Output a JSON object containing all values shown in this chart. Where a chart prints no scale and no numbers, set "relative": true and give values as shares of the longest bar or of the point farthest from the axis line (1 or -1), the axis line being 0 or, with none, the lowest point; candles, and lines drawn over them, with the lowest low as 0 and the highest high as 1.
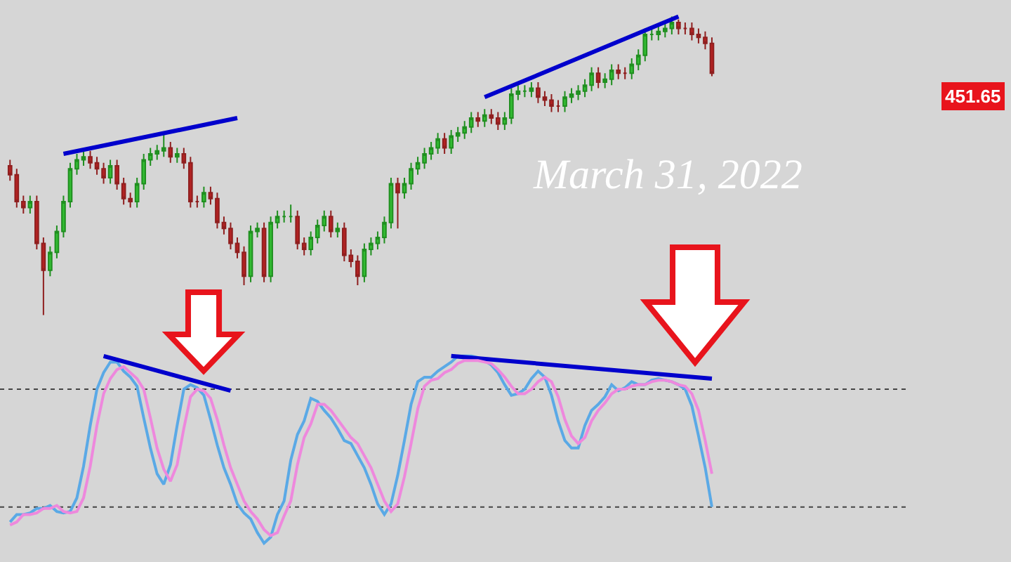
{
  "chart_data": [
    {
      "type": "candlestick",
      "relative": true,
      "categories": [
        null,
        null,
        null,
        null,
        null,
        null,
        null,
        null,
        null,
        null,
        null,
        null,
        null,
        null,
        null,
        null,
        null,
        null,
        null,
        null,
        null,
        null,
        null,
        null,
        null,
        null,
        null,
        null,
        null,
        null,
        null,
        null,
        null,
        null,
        null,
        null,
        null,
        null,
        null,
        null,
        null,
        null,
        null,
        null,
        null,
        null,
        null,
        null,
        null,
        null,
        null,
        null,
        null,
        null,
        null,
        null,
        null,
        null,
        null,
        null,
        null,
        null,
        null,
        null,
        null,
        null,
        null,
        null,
        null,
        null,
        null,
        null,
        null,
        null,
        null,
        null,
        null,
        null,
        null,
        null,
        null,
        null,
        null,
        null,
        null,
        null,
        null,
        null,
        null,
        null,
        null,
        null,
        null,
        null,
        null,
        null,
        null,
        null,
        null,
        null,
        null,
        null,
        null,
        null,
        null,
        null
      ],
      "ohlc": [
        [
          0.5,
          0.52,
          0.45,
          0.47
        ],
        [
          0.47,
          0.49,
          0.36,
          0.38
        ],
        [
          0.38,
          0.4,
          0.34,
          0.36
        ],
        [
          0.36,
          0.4,
          0.34,
          0.38
        ],
        [
          0.38,
          0.4,
          0.22,
          0.24
        ],
        [
          0.24,
          0.26,
          0.0,
          0.15
        ],
        [
          0.15,
          0.23,
          0.13,
          0.21
        ],
        [
          0.21,
          0.3,
          0.19,
          0.28
        ],
        [
          0.28,
          0.4,
          0.26,
          0.38
        ],
        [
          0.38,
          0.51,
          0.36,
          0.49
        ],
        [
          0.49,
          0.54,
          0.47,
          0.52
        ],
        [
          0.52,
          0.55,
          0.5,
          0.53
        ],
        [
          0.53,
          0.55,
          0.49,
          0.51
        ],
        [
          0.51,
          0.53,
          0.47,
          0.49
        ],
        [
          0.49,
          0.51,
          0.44,
          0.46
        ],
        [
          0.46,
          0.52,
          0.44,
          0.5
        ],
        [
          0.5,
          0.52,
          0.42,
          0.44
        ],
        [
          0.44,
          0.46,
          0.37,
          0.39
        ],
        [
          0.39,
          0.41,
          0.36,
          0.38
        ],
        [
          0.38,
          0.46,
          0.36,
          0.44
        ],
        [
          0.44,
          0.54,
          0.42,
          0.52
        ],
        [
          0.52,
          0.56,
          0.5,
          0.54
        ],
        [
          0.54,
          0.57,
          0.52,
          0.55
        ],
        [
          0.55,
          0.61,
          0.53,
          0.56
        ],
        [
          0.56,
          0.58,
          0.51,
          0.53
        ],
        [
          0.53,
          0.56,
          0.51,
          0.54
        ],
        [
          0.54,
          0.56,
          0.49,
          0.51
        ],
        [
          0.51,
          0.53,
          0.36,
          0.38
        ],
        [
          0.38,
          0.4,
          0.36,
          0.38
        ],
        [
          0.38,
          0.43,
          0.36,
          0.41
        ],
        [
          0.41,
          0.43,
          0.37,
          0.39
        ],
        [
          0.39,
          0.41,
          0.29,
          0.31
        ],
        [
          0.31,
          0.33,
          0.27,
          0.29
        ],
        [
          0.29,
          0.31,
          0.22,
          0.24
        ],
        [
          0.24,
          0.26,
          0.19,
          0.21
        ],
        [
          0.21,
          0.23,
          0.1,
          0.13
        ],
        [
          0.13,
          0.3,
          0.11,
          0.28
        ],
        [
          0.28,
          0.31,
          0.26,
          0.29
        ],
        [
          0.29,
          0.31,
          0.11,
          0.13
        ],
        [
          0.13,
          0.33,
          0.11,
          0.31
        ],
        [
          0.31,
          0.35,
          0.29,
          0.33
        ],
        [
          0.33,
          0.35,
          0.31,
          0.33
        ],
        [
          0.33,
          0.37,
          0.31,
          0.33
        ],
        [
          0.33,
          0.35,
          0.22,
          0.24
        ],
        [
          0.24,
          0.26,
          0.2,
          0.22
        ],
        [
          0.22,
          0.28,
          0.2,
          0.26
        ],
        [
          0.26,
          0.32,
          0.24,
          0.3
        ],
        [
          0.3,
          0.35,
          0.28,
          0.33
        ],
        [
          0.33,
          0.35,
          0.26,
          0.28
        ],
        [
          0.28,
          0.31,
          0.26,
          0.29
        ],
        [
          0.29,
          0.31,
          0.18,
          0.2
        ],
        [
          0.2,
          0.22,
          0.16,
          0.18
        ],
        [
          0.18,
          0.2,
          0.1,
          0.13
        ],
        [
          0.13,
          0.24,
          0.11,
          0.22
        ],
        [
          0.22,
          0.26,
          0.2,
          0.24
        ],
        [
          0.24,
          0.28,
          0.22,
          0.26
        ],
        [
          0.26,
          0.33,
          0.24,
          0.31
        ],
        [
          0.31,
          0.46,
          0.29,
          0.44
        ],
        [
          0.44,
          0.46,
          0.29,
          0.41
        ],
        [
          0.41,
          0.46,
          0.39,
          0.44
        ],
        [
          0.44,
          0.51,
          0.42,
          0.49
        ],
        [
          0.49,
          0.53,
          0.47,
          0.51
        ],
        [
          0.51,
          0.56,
          0.49,
          0.54
        ],
        [
          0.54,
          0.58,
          0.52,
          0.56
        ],
        [
          0.56,
          0.61,
          0.54,
          0.59
        ],
        [
          0.59,
          0.61,
          0.54,
          0.56
        ],
        [
          0.56,
          0.62,
          0.54,
          0.6
        ],
        [
          0.6,
          0.63,
          0.58,
          0.61
        ],
        [
          0.61,
          0.65,
          0.59,
          0.63
        ],
        [
          0.63,
          0.68,
          0.61,
          0.66
        ],
        [
          0.66,
          0.68,
          0.63,
          0.65
        ],
        [
          0.65,
          0.69,
          0.63,
          0.67
        ],
        [
          0.67,
          0.69,
          0.64,
          0.66
        ],
        [
          0.66,
          0.68,
          0.62,
          0.64
        ],
        [
          0.64,
          0.68,
          0.62,
          0.66
        ],
        [
          0.66,
          0.76,
          0.64,
          0.74
        ],
        [
          0.74,
          0.77,
          0.72,
          0.75
        ],
        [
          0.75,
          0.77,
          0.73,
          0.75
        ],
        [
          0.75,
          0.78,
          0.73,
          0.76
        ],
        [
          0.76,
          0.78,
          0.71,
          0.73
        ],
        [
          0.73,
          0.75,
          0.7,
          0.72
        ],
        [
          0.72,
          0.74,
          0.68,
          0.7
        ],
        [
          0.7,
          0.72,
          0.68,
          0.7
        ],
        [
          0.7,
          0.75,
          0.68,
          0.73
        ],
        [
          0.73,
          0.76,
          0.71,
          0.74
        ],
        [
          0.74,
          0.77,
          0.72,
          0.75
        ],
        [
          0.75,
          0.79,
          0.73,
          0.77
        ],
        [
          0.77,
          0.83,
          0.75,
          0.81
        ],
        [
          0.81,
          0.83,
          0.76,
          0.78
        ],
        [
          0.78,
          0.81,
          0.76,
          0.79
        ],
        [
          0.79,
          0.84,
          0.77,
          0.82
        ],
        [
          0.82,
          0.84,
          0.79,
          0.81
        ],
        [
          0.81,
          0.83,
          0.79,
          0.81
        ],
        [
          0.81,
          0.86,
          0.79,
          0.84
        ],
        [
          0.84,
          0.89,
          0.82,
          0.87
        ],
        [
          0.87,
          0.96,
          0.85,
          0.94
        ],
        [
          0.94,
          0.96,
          0.92,
          0.94
        ],
        [
          0.94,
          0.97,
          0.92,
          0.95
        ],
        [
          0.95,
          0.98,
          0.93,
          0.96
        ],
        [
          0.96,
          1.0,
          0.94,
          0.98
        ],
        [
          0.98,
          0.99,
          0.94,
          0.96
        ],
        [
          0.96,
          0.98,
          0.94,
          0.96
        ],
        [
          0.96,
          0.98,
          0.92,
          0.94
        ],
        [
          0.94,
          0.96,
          0.91,
          0.93
        ],
        [
          0.93,
          0.95,
          0.89,
          0.91
        ],
        [
          0.91,
          0.93,
          0.8,
          0.81
        ]
      ],
      "series": [
        {
          "type": "line",
          "color": "#0000cc",
          "values": [
            null,
            null,
            null,
            null,
            null,
            null,
            null,
            null,
            0.54,
            null,
            null,
            null,
            null,
            null,
            null,
            null,
            null,
            null,
            null,
            null,
            null,
            null,
            null,
            null,
            null,
            null,
            null,
            null,
            null,
            null,
            null,
            null,
            null,
            null,
            0.66,
            null,
            null,
            null,
            null,
            null,
            null,
            null,
            null,
            null,
            null,
            null,
            null,
            null,
            null,
            null,
            null,
            null,
            null,
            null,
            null,
            null,
            null,
            null,
            null,
            null,
            null,
            null,
            null,
            null,
            null,
            null,
            null,
            null,
            null,
            null,
            null,
            null,
            null,
            null,
            null,
            null,
            null,
            null,
            null,
            null,
            null,
            null,
            null,
            null,
            null,
            null,
            null,
            null,
            null,
            null,
            null,
            null,
            null,
            null,
            null,
            null,
            null,
            null,
            null,
            null,
            null,
            null,
            null,
            null,
            null,
            null
          ]
        },
        {
          "type": "line",
          "color": "#0000cc",
          "values": [
            null,
            null,
            null,
            null,
            null,
            null,
            null,
            null,
            null,
            null,
            null,
            null,
            null,
            null,
            null,
            null,
            null,
            null,
            null,
            null,
            null,
            null,
            null,
            null,
            null,
            null,
            null,
            null,
            null,
            null,
            null,
            null,
            null,
            null,
            null,
            null,
            null,
            null,
            null,
            null,
            null,
            null,
            null,
            null,
            null,
            null,
            null,
            null,
            null,
            null,
            null,
            null,
            null,
            null,
            null,
            null,
            null,
            null,
            null,
            null,
            null,
            null,
            null,
            null,
            null,
            null,
            null,
            null,
            null,
            null,
            null,
            0.73,
            null,
            null,
            null,
            null,
            null,
            null,
            null,
            null,
            null,
            null,
            null,
            null,
            null,
            null,
            null,
            null,
            null,
            null,
            null,
            null,
            null,
            null,
            null,
            null,
            null,
            null,
            null,
            null,
            1.0,
            null,
            null,
            null,
            null,
            null
          ]
        }
      ],
      "annotations": [
        "March 31, 2022",
        "451.65"
      ]
    },
    {
      "type": "line",
      "relative": true,
      "marker": "none",
      "line_style": "solid",
      "categories": [
        null,
        null,
        null,
        null,
        null,
        null,
        null,
        null,
        null,
        null,
        null,
        null,
        null,
        null,
        null,
        null,
        null,
        null,
        null,
        null,
        null,
        null,
        null,
        null,
        null,
        null,
        null,
        null,
        null,
        null,
        null,
        null,
        null,
        null,
        null,
        null,
        null,
        null,
        null,
        null,
        null,
        null,
        null,
        null,
        null,
        null,
        null,
        null,
        null,
        null,
        null,
        null,
        null,
        null,
        null,
        null,
        null,
        null,
        null,
        null,
        null,
        null,
        null,
        null,
        null,
        null,
        null,
        null,
        null,
        null,
        null,
        null,
        null,
        null,
        null,
        null,
        null,
        null,
        null,
        null,
        null,
        null,
        null,
        null,
        null,
        null,
        null,
        null,
        null,
        null,
        null,
        null,
        null,
        null,
        null,
        null,
        null,
        null,
        null,
        null,
        null,
        null,
        null,
        null,
        null,
        null
      ],
      "series": [
        {
          "color": "#5aa9e6",
          "values": [
            -0.1,
            -0.05,
            -0.05,
            -0.04,
            -0.01,
            -0.01,
            0.01,
            -0.03,
            -0.04,
            -0.03,
            0.06,
            0.27,
            0.54,
            0.78,
            0.89,
            0.96,
            0.96,
            0.9,
            0.86,
            0.8,
            0.59,
            0.39,
            0.22,
            0.15,
            0.28,
            0.54,
            0.78,
            0.81,
            0.79,
            0.74,
            0.58,
            0.41,
            0.26,
            0.15,
            0.02,
            -0.04,
            -0.08,
            -0.17,
            -0.24,
            -0.2,
            -0.05,
            0.04,
            0.31,
            0.48,
            0.57,
            0.72,
            0.7,
            0.64,
            0.59,
            0.52,
            0.44,
            0.42,
            0.34,
            0.26,
            0.15,
            0.02,
            -0.05,
            0.02,
            0.21,
            0.44,
            0.68,
            0.83,
            0.86,
            0.86,
            0.9,
            0.93,
            0.96,
            1.0,
            1.0,
            1.0,
            0.99,
            0.97,
            0.94,
            0.89,
            0.81,
            0.74,
            0.75,
            0.78,
            0.85,
            0.9,
            0.86,
            0.74,
            0.57,
            0.44,
            0.39,
            0.39,
            0.54,
            0.64,
            0.68,
            0.73,
            0.81,
            0.77,
            0.79,
            0.83,
            0.81,
            0.81,
            0.84,
            0.85,
            0.84,
            0.83,
            0.81,
            0.78,
            0.67,
            0.47,
            0.26,
            0.0
          ]
        },
        {
          "color": "#0000cc",
          "values": [
            null,
            null,
            null,
            null,
            null,
            null,
            null,
            null,
            null,
            null,
            null,
            null,
            null,
            null,
            1.0,
            null,
            null,
            null,
            null,
            null,
            null,
            null,
            null,
            null,
            null,
            null,
            null,
            null,
            null,
            null,
            null,
            null,
            null,
            0.77,
            null,
            null,
            null,
            null,
            null,
            null,
            null,
            null,
            null,
            null,
            null,
            null,
            null,
            null,
            null,
            null,
            null,
            null,
            null,
            null,
            null,
            null,
            null,
            null,
            null,
            null,
            null,
            null,
            null,
            null,
            null,
            null,
            null,
            null,
            null,
            null,
            null,
            null,
            null,
            null,
            null,
            null,
            null,
            null,
            null,
            null,
            null,
            null,
            null,
            null,
            null,
            null,
            null,
            null,
            null,
            null,
            null,
            null,
            null,
            null,
            null,
            null,
            null,
            null,
            null,
            null,
            null,
            null,
            null,
            null,
            null,
            null
          ]
        },
        {
          "color": "#0000cc",
          "values": [
            null,
            null,
            null,
            null,
            null,
            null,
            null,
            null,
            null,
            null,
            null,
            null,
            null,
            null,
            null,
            null,
            null,
            null,
            null,
            null,
            null,
            null,
            null,
            null,
            null,
            null,
            null,
            null,
            null,
            null,
            null,
            null,
            null,
            null,
            null,
            null,
            null,
            null,
            null,
            null,
            null,
            null,
            null,
            null,
            null,
            null,
            null,
            null,
            null,
            null,
            null,
            null,
            null,
            null,
            null,
            null,
            null,
            null,
            null,
            null,
            null,
            null,
            null,
            null,
            null,
            null,
            1.0,
            null,
            null,
            null,
            null,
            null,
            null,
            null,
            null,
            null,
            null,
            null,
            null,
            null,
            null,
            null,
            null,
            null,
            null,
            null,
            null,
            null,
            null,
            null,
            null,
            null,
            null,
            null,
            null,
            null,
            null,
            null,
            null,
            null,
            null,
            null,
            null,
            null,
            null,
            0.85
          ]
        },
        {
          "color": "#ee88dd",
          "values": [
            -0.12,
            -0.1,
            -0.05,
            -0.05,
            -0.04,
            -0.01,
            -0.01,
            0.01,
            -0.03,
            -0.04,
            -0.03,
            0.06,
            0.27,
            0.54,
            0.75,
            0.85,
            0.91,
            0.93,
            0.89,
            0.85,
            0.78,
            0.59,
            0.39,
            0.25,
            0.17,
            0.28,
            0.52,
            0.73,
            0.78,
            0.77,
            0.72,
            0.58,
            0.41,
            0.26,
            0.15,
            0.04,
            -0.03,
            -0.08,
            -0.15,
            -0.19,
            -0.17,
            -0.06,
            0.04,
            0.28,
            0.46,
            0.55,
            0.68,
            0.68,
            0.64,
            0.58,
            0.52,
            0.46,
            0.42,
            0.34,
            0.26,
            0.15,
            0.04,
            -0.03,
            0.02,
            0.2,
            0.42,
            0.65,
            0.8,
            0.84,
            0.85,
            0.89,
            0.91,
            0.95,
            0.97,
            0.97,
            0.97,
            0.96,
            0.95,
            0.91,
            0.86,
            0.8,
            0.75,
            0.75,
            0.78,
            0.83,
            0.86,
            0.83,
            0.73,
            0.58,
            0.47,
            0.42,
            0.46,
            0.57,
            0.64,
            0.69,
            0.75,
            0.78,
            0.78,
            0.8,
            0.81,
            0.81,
            0.83,
            0.84,
            0.84,
            0.83,
            0.81,
            0.8,
            0.75,
            0.64,
            0.44,
            0.22
          ]
        }
      ],
      "ref_lines": [
        {
          "axis": "y",
          "value": 0.78,
          "color": "#444444",
          "line_style": "dotted"
        },
        {
          "axis": "y",
          "value": 0.0,
          "color": "#444444",
          "line_style": "dotted"
        }
      ]
    }
  ]
}
